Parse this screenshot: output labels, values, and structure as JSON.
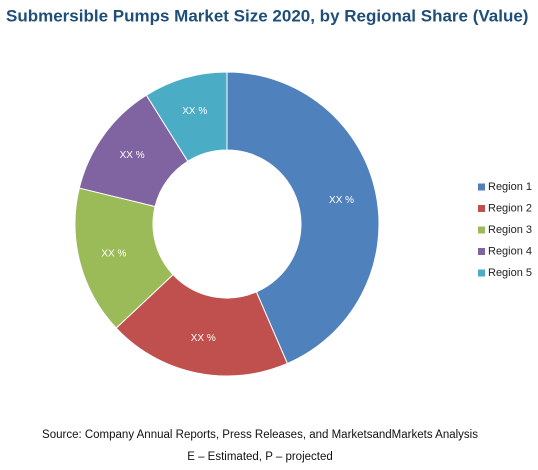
{
  "chart_data": {
    "type": "donut",
    "title": "Submersible Pumps Market Size 2020, by Regional Share (Value)",
    "categories": [
      "Region 1",
      "Region 2",
      "Region 3",
      "Region 4",
      "Region 5"
    ],
    "values": [
      43.5,
      19.5,
      15.8,
      12.3,
      8.9
    ],
    "value_labels": [
      "XX %",
      "XX %",
      "XX %",
      "XX %",
      "XX %"
    ],
    "colors": [
      "#4f81bd",
      "#c0504d",
      "#9bbb59",
      "#8064a2",
      "#4bacc6"
    ],
    "legend": "right",
    "source": "Source: Company Annual Reports, Press Releases, and MarketsandMarkets Analysis",
    "footnote": "E – Estimated, P – projected"
  }
}
